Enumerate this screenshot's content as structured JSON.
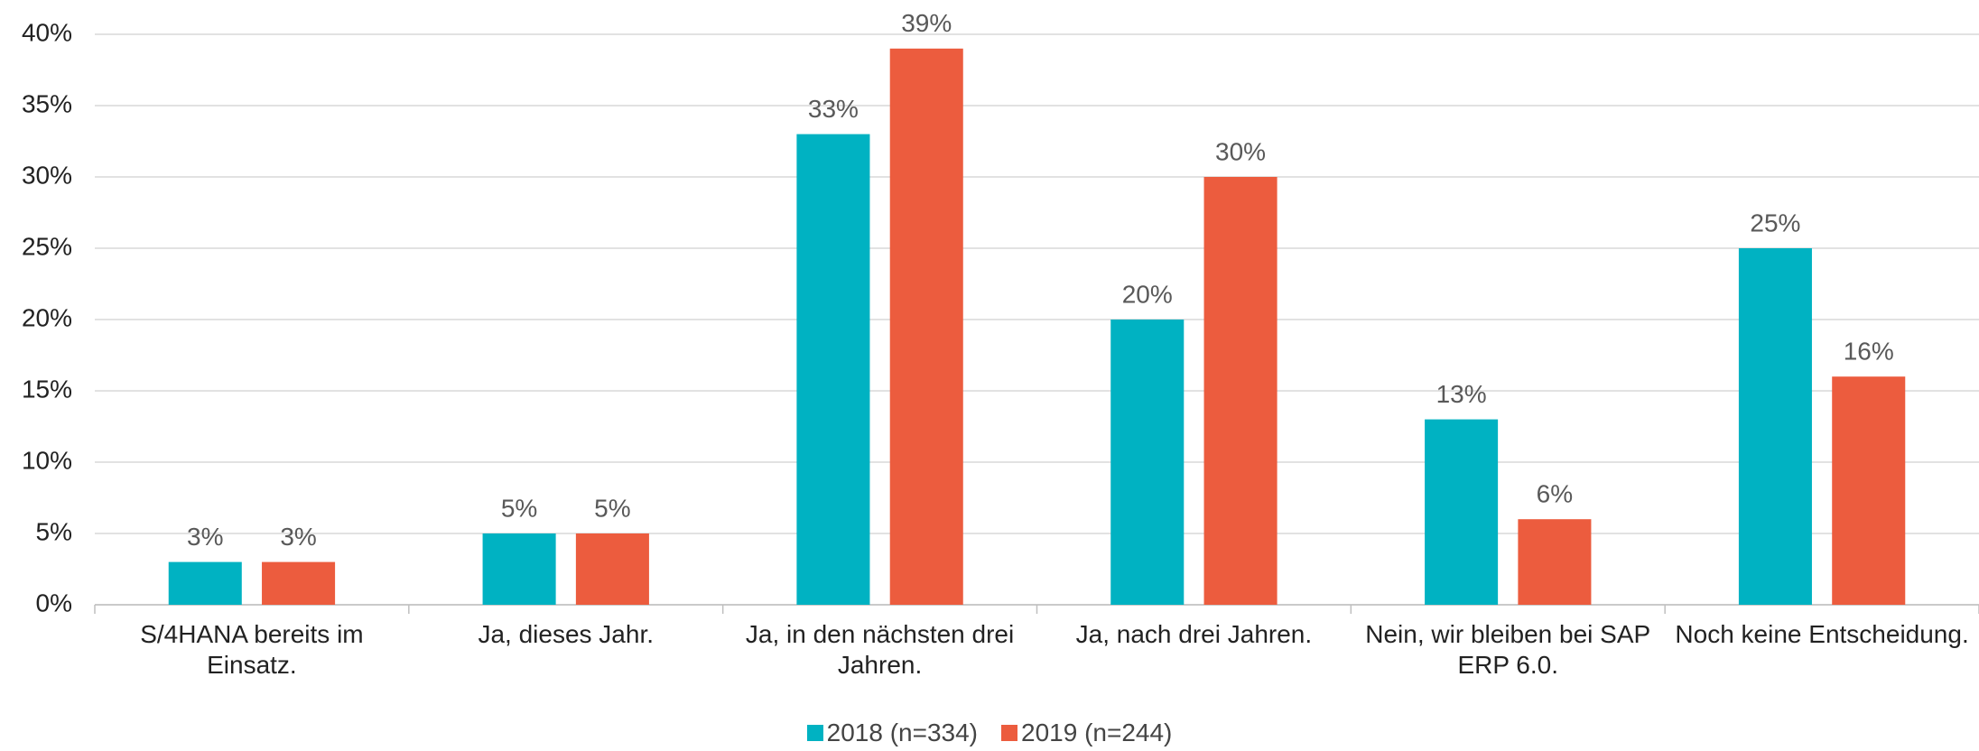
{
  "chart_data": {
    "type": "bar",
    "categories": [
      "S/4HANA bereits im Einsatz.",
      "Ja, dieses Jahr.",
      "Ja, in den nächsten drei Jahren.",
      "Ja, nach drei Jahren.",
      "Nein, wir bleiben bei SAP ERP 6.0.",
      "Noch keine Entscheidung."
    ],
    "series": [
      {
        "name": "2018 (n=334)",
        "color": "#00b2c2",
        "values": [
          3,
          5,
          33,
          20,
          13,
          25
        ],
        "value_labels": [
          "3%",
          "5%",
          "33%",
          "20%",
          "13%",
          "25%"
        ]
      },
      {
        "name": "2019 (n=244)",
        "color": "#ec5c3e",
        "values": [
          3,
          5,
          39,
          30,
          6,
          16
        ],
        "value_labels": [
          "3%",
          "5%",
          "39%",
          "30%",
          "6%",
          "16%"
        ]
      }
    ],
    "ylim": [
      0,
      40
    ],
    "yticks": [
      {
        "value": 0,
        "label": "0%"
      },
      {
        "value": 5,
        "label": "5%"
      },
      {
        "value": 10,
        "label": "10%"
      },
      {
        "value": 15,
        "label": "15%"
      },
      {
        "value": 20,
        "label": "20%"
      },
      {
        "value": 25,
        "label": "25%"
      },
      {
        "value": 30,
        "label": "30%"
      },
      {
        "value": 35,
        "label": "35%"
      },
      {
        "value": 40,
        "label": "40%"
      }
    ],
    "grid": true,
    "legend": "bottom"
  }
}
